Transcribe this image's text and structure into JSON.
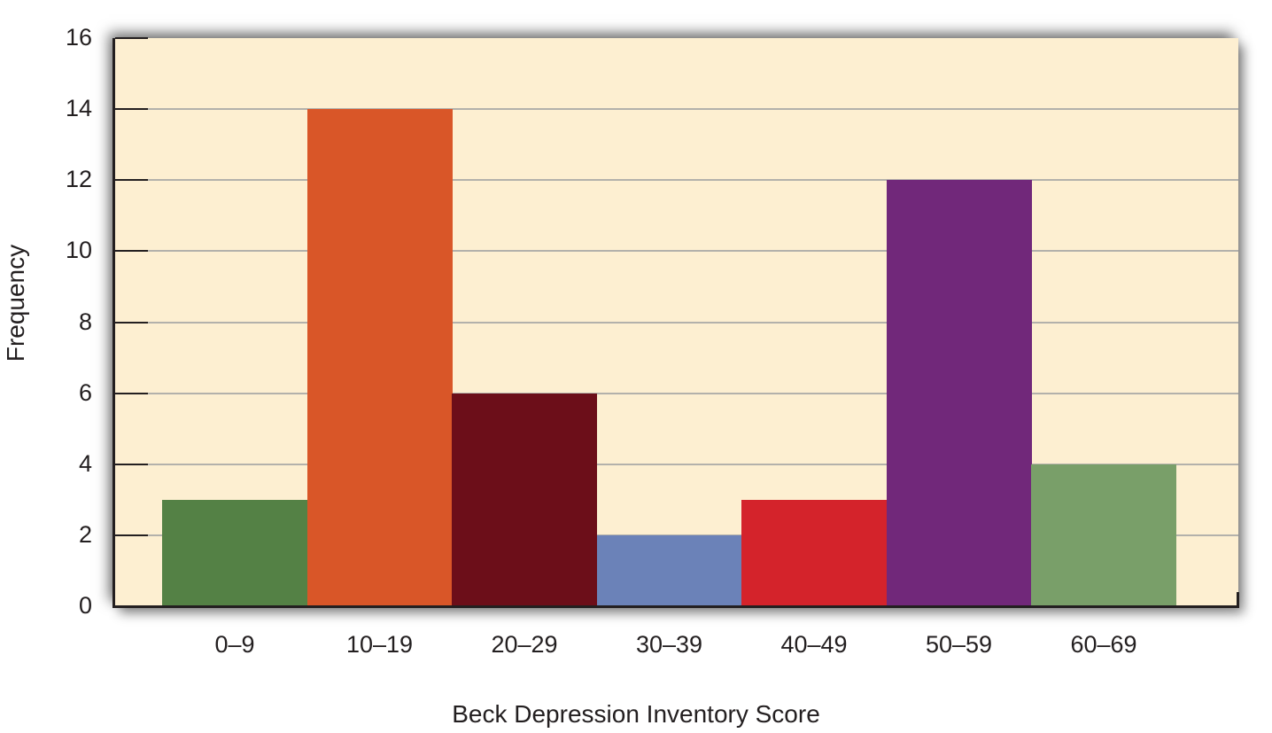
{
  "chart_data": {
    "type": "bar",
    "title": "",
    "xlabel": "Beck Depression Inventory Score",
    "ylabel": "Frequency",
    "categories": [
      "0–9",
      "10–19",
      "20–29",
      "30–39",
      "40–49",
      "50–59",
      "60–69"
    ],
    "values": [
      3,
      14,
      6,
      2,
      3,
      12,
      4
    ],
    "colors": [
      "#548145",
      "#d95628",
      "#6c0e19",
      "#6b82b8",
      "#d4232b",
      "#71287a",
      "#799f69"
    ],
    "ylim": [
      0,
      16
    ],
    "yticks": [
      "0",
      "2",
      "4",
      "6",
      "8",
      "10",
      "12",
      "14",
      "16"
    ],
    "grid": true,
    "legend": null,
    "background": "#fdefd1"
  }
}
